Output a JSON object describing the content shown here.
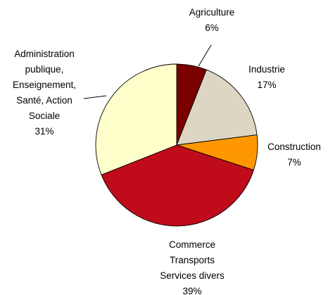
{
  "chart_data": {
    "type": "pie",
    "title": "",
    "start_angle_deg": 0,
    "direction": "clockwise",
    "slices": [
      {
        "lines": [
          "Agriculture"
        ],
        "value_label": "6%",
        "value": 6,
        "color": "#7b0000"
      },
      {
        "lines": [
          "Industrie"
        ],
        "value_label": "17%",
        "value": 17,
        "color": "#ddd6c3"
      },
      {
        "lines": [
          "Construction"
        ],
        "value_label": "7%",
        "value": 7,
        "color": "#ff9800"
      },
      {
        "lines": [
          "Commerce",
          "Transports",
          "Services divers"
        ],
        "value_label": "39%",
        "value": 39,
        "color": "#c00b1a"
      },
      {
        "lines": [
          "Administration",
          "publique,",
          "Enseignement,",
          "Santé, Action",
          "Sociale"
        ],
        "value_label": "31%",
        "value": 31,
        "color": "#ffffcc"
      }
    ]
  }
}
